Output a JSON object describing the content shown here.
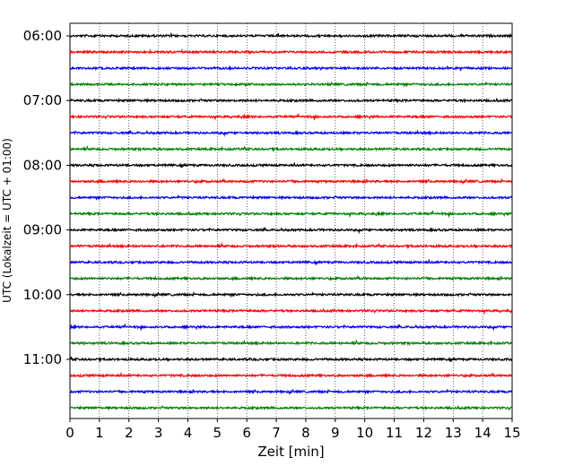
{
  "chart_data": {
    "type": "line",
    "title": "",
    "xlabel": "Zeit  [min]",
    "ylabel": "UTC (Lokalzeit = UTC + 01:00)",
    "xlim": [
      0,
      15
    ],
    "x_ticks": [
      0,
      1,
      2,
      3,
      4,
      5,
      6,
      7,
      8,
      9,
      10,
      11,
      12,
      13,
      14,
      15
    ],
    "y_ticks": [
      "06:00",
      "07:00",
      "08:00",
      "09:00",
      "10:00",
      "11:00"
    ],
    "grid": "vertical dotted",
    "legend": "none",
    "trace_minutes": 15,
    "trace_start_times": [
      "06:00",
      "06:15",
      "06:30",
      "06:45",
      "07:00",
      "07:15",
      "07:30",
      "07:45",
      "08:00",
      "08:15",
      "08:30",
      "08:45",
      "09:00",
      "09:15",
      "09:30",
      "09:45",
      "10:00",
      "10:15",
      "10:30",
      "10:45",
      "11:00",
      "11:15",
      "11:30",
      "11:45"
    ],
    "trace_colors": [
      "#000000",
      "#ff0000",
      "#0000ff",
      "#008000"
    ]
  }
}
